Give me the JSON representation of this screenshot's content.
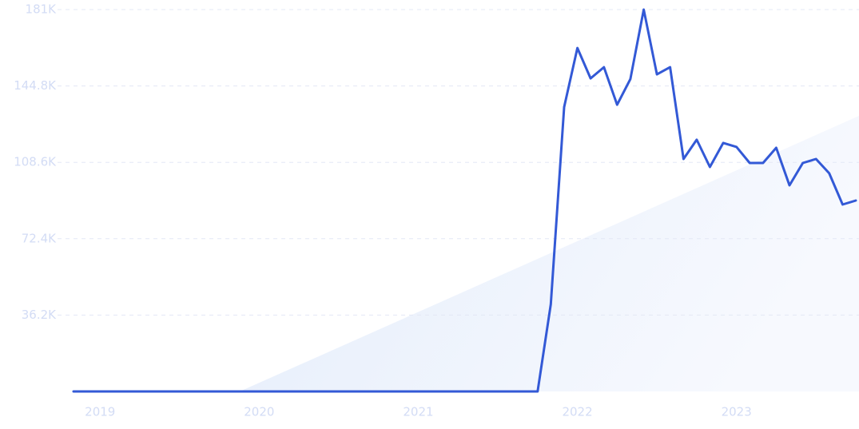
{
  "chart_data": {
    "type": "line",
    "x": [
      2018.833,
      2018.917,
      2019.0,
      2019.083,
      2019.167,
      2019.25,
      2019.333,
      2019.417,
      2019.5,
      2019.583,
      2019.667,
      2019.75,
      2019.833,
      2019.917,
      2020.0,
      2020.083,
      2020.167,
      2020.25,
      2020.333,
      2020.417,
      2020.5,
      2020.583,
      2020.667,
      2020.75,
      2020.833,
      2020.917,
      2021.0,
      2021.083,
      2021.167,
      2021.25,
      2021.333,
      2021.417,
      2021.5,
      2021.583,
      2021.667,
      2021.75,
      2021.833,
      2021.917,
      2022.0,
      2022.083,
      2022.167,
      2022.25,
      2022.333,
      2022.417,
      2022.5,
      2022.583,
      2022.667,
      2022.75,
      2022.833,
      2022.917,
      2023.0,
      2023.083,
      2023.167,
      2023.25,
      2023.333,
      2023.417,
      2023.5,
      2023.583,
      2023.667,
      2023.75
    ],
    "values": [
      0,
      0,
      0,
      0,
      0,
      0,
      0,
      0,
      0,
      0,
      0,
      0,
      0,
      0,
      0,
      0,
      0,
      0,
      0,
      0,
      0,
      0,
      0,
      0,
      0,
      0,
      0,
      0,
      0,
      0,
      0,
      0,
      0,
      0,
      0,
      0,
      41300,
      134800,
      162800,
      148400,
      153700,
      135900,
      148100,
      181000,
      150300,
      153700,
      110200,
      119300,
      106400,
      117800,
      115900,
      108300,
      108300,
      115500,
      97700,
      108300,
      110200,
      103400,
      88600,
      90500
    ],
    "color": "#3359d6",
    "xlim": [
      2018.833,
      2023.75
    ],
    "xticks": [
      2019,
      2020,
      2021,
      2022,
      2023
    ],
    "ylim": [
      0,
      181000
    ],
    "yticks": [
      {
        "value": 36200,
        "label": "36.2K"
      },
      {
        "value": 72400,
        "label": "72.4K"
      },
      {
        "value": 108600,
        "label": "108.6K"
      },
      {
        "value": 144800,
        "label": "144.8K"
      },
      {
        "value": 181000,
        "label": "181K"
      }
    ],
    "grid": true
  }
}
